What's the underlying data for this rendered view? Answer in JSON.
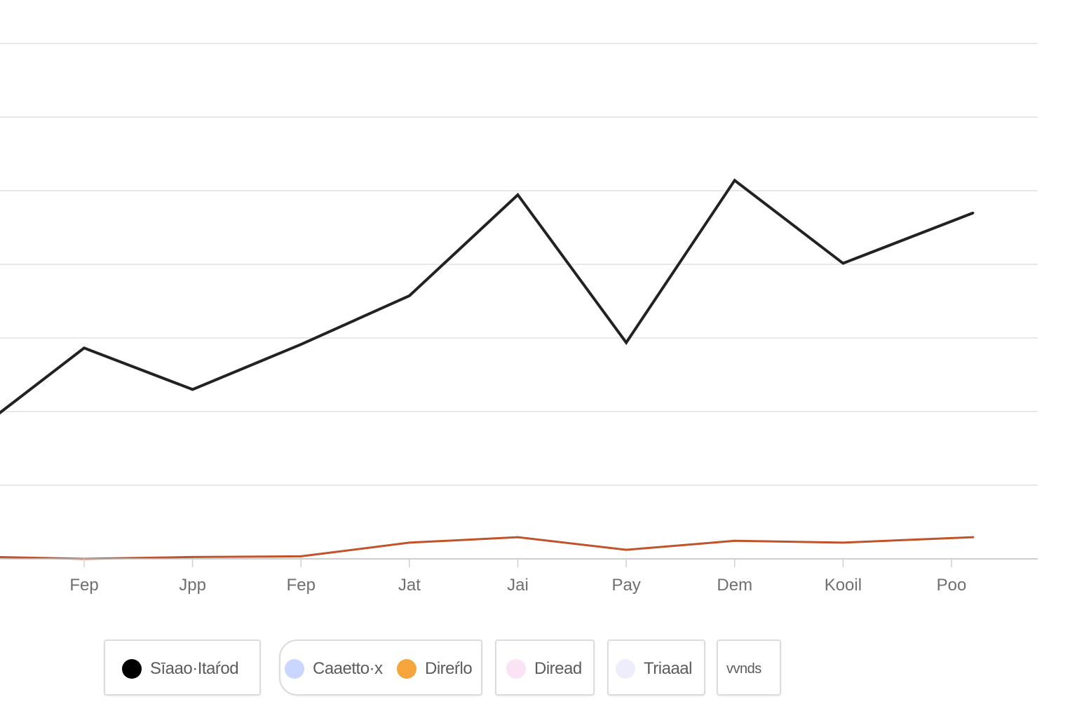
{
  "chart_data": {
    "type": "line",
    "categories": [
      "Fep",
      "Jpp",
      "Fep",
      "Jat",
      "Jai",
      "Pay",
      "Dem",
      "Kooil",
      "Poo"
    ],
    "series": [
      {
        "name": "Sīaao·Itaŕod",
        "color": "#222222",
        "x": [
          -0.8,
          0,
          1,
          2,
          3,
          4,
          5,
          6,
          7,
          8.2
        ],
        "values": [
          39,
          57.5,
          46,
          58.5,
          72,
          100,
          59,
          104,
          81,
          95
        ]
      },
      {
        "name": "Direŕlo",
        "color": "#c0532a",
        "x": [
          -0.8,
          0,
          1,
          2,
          3,
          4,
          5,
          6,
          7,
          8.2
        ],
        "values": [
          -0.5,
          -1,
          -0.5,
          -0.3,
          3.5,
          5,
          1.5,
          4,
          3.5,
          5
        ]
      }
    ],
    "ylim": [
      -1,
      142
    ],
    "grid": true,
    "legend": {
      "placement": "bottom",
      "items": [
        {
          "label": "Sīaao·Itaŕod",
          "color": "#000000"
        },
        {
          "label": "Caaetto·x",
          "color": "#c9d6ff"
        },
        {
          "label": "Direŕlo",
          "color": "#f5a53c"
        },
        {
          "label": "Diread",
          "color": "#fbe3f6"
        },
        {
          "label": "Triaaal",
          "color": "#eeedfb"
        },
        {
          "label": "vvnds",
          "color": ""
        }
      ]
    }
  }
}
